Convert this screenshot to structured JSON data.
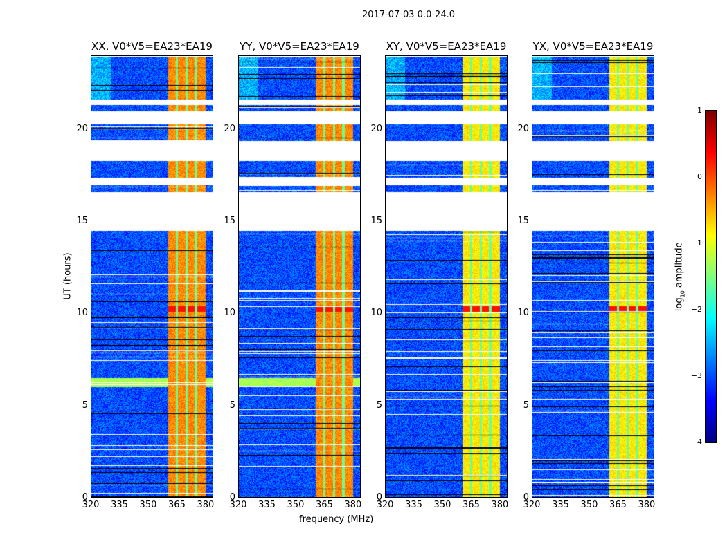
{
  "chart_data": {
    "type": "heatmap",
    "title": "2017-07-03 0.0-24.0",
    "xlabel": "frequency (MHz)",
    "ylabel": "UT (hours)",
    "xlim": [
      320,
      384
    ],
    "ylim": [
      0,
      24
    ],
    "xticks": [
      "320",
      "335",
      "350",
      "365",
      "380"
    ],
    "xtick_values": [
      320,
      335,
      350,
      365,
      380
    ],
    "yticks": [
      "0",
      "5",
      "10",
      "15",
      "20"
    ],
    "ytick_values": [
      0,
      5,
      10,
      15,
      20
    ],
    "panels": [
      {
        "title": "XX, V0*V5=EA23*EA19",
        "band_level": -0.3
      },
      {
        "title": "YY, V0*V5=EA23*EA19",
        "band_level": -0.3
      },
      {
        "title": "XY, V0*V5=EA23*EA19",
        "band_level": -0.8
      },
      {
        "title": "YX, V0*V5=EA23*EA19",
        "band_level": -0.8
      }
    ],
    "data_segments_hours": [
      [
        0,
        14.5
      ],
      [
        16.6,
        17.0
      ],
      [
        17.4,
        18.3
      ],
      [
        19.4,
        20.3
      ],
      [
        21.0,
        21.35
      ],
      [
        21.65,
        24
      ]
    ],
    "bright_band_mhz": [
      360.5,
      380
    ],
    "band_gaps_mhz": [
      365,
      370,
      375
    ],
    "background_level": -3.0,
    "strong_rfi_hours": [
      [
        6.0,
        6.5
      ],
      [
        10.1,
        10.4
      ]
    ],
    "colorbar": {
      "label": "log10 amplitude",
      "label_main": "log",
      "label_sub": "10",
      "label_rest": " amplitude",
      "range": [
        -4,
        1
      ],
      "ticks": [
        "1",
        "0",
        "−1",
        "−2",
        "−3",
        "−4"
      ],
      "tick_values": [
        1,
        0,
        -1,
        -2,
        -3,
        -4
      ],
      "colormap": "jet"
    }
  }
}
